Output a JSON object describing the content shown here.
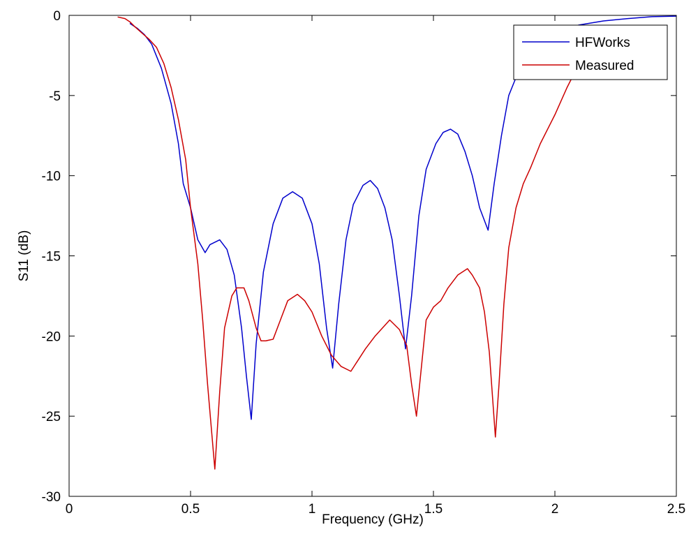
{
  "chart_data": {
    "type": "line",
    "title": "",
    "xlabel": "Frequency (GHz)",
    "ylabel": "S11 (dB)",
    "xlim": [
      0,
      2.5
    ],
    "ylim": [
      -30,
      0
    ],
    "xticks": [
      0,
      0.5,
      1,
      1.5,
      2,
      2.5
    ],
    "xtick_labels": [
      "0",
      "0.5",
      "1",
      "1.5",
      "2",
      "2.5"
    ],
    "yticks": [
      0,
      -5,
      -10,
      -15,
      -20,
      -25,
      -30
    ],
    "ytick_labels": [
      "0",
      "-5",
      "-10",
      "-15",
      "-20",
      "-25",
      "-30"
    ],
    "grid": false,
    "legend_position": "top-right",
    "series": [
      {
        "name": "HFWorks",
        "color": "#0000cc",
        "points": [
          [
            0.25,
            -0.5
          ],
          [
            0.28,
            -0.8
          ],
          [
            0.31,
            -1.2
          ],
          [
            0.34,
            -1.8
          ],
          [
            0.38,
            -3.3
          ],
          [
            0.42,
            -5.5
          ],
          [
            0.45,
            -8.0
          ],
          [
            0.47,
            -10.5
          ],
          [
            0.5,
            -12.0
          ],
          [
            0.53,
            -14.0
          ],
          [
            0.56,
            -14.8
          ],
          [
            0.58,
            -14.3
          ],
          [
            0.62,
            -14.0
          ],
          [
            0.65,
            -14.6
          ],
          [
            0.68,
            -16.2
          ],
          [
            0.71,
            -19.5
          ],
          [
            0.73,
            -22.5
          ],
          [
            0.75,
            -25.2
          ],
          [
            0.77,
            -20.5
          ],
          [
            0.8,
            -16.0
          ],
          [
            0.84,
            -13.0
          ],
          [
            0.88,
            -11.4
          ],
          [
            0.92,
            -11.0
          ],
          [
            0.96,
            -11.4
          ],
          [
            1.0,
            -13.0
          ],
          [
            1.03,
            -15.5
          ],
          [
            1.06,
            -19.5
          ],
          [
            1.085,
            -22.0
          ],
          [
            1.11,
            -18.0
          ],
          [
            1.14,
            -14.0
          ],
          [
            1.17,
            -11.8
          ],
          [
            1.21,
            -10.6
          ],
          [
            1.24,
            -10.3
          ],
          [
            1.27,
            -10.8
          ],
          [
            1.3,
            -12.0
          ],
          [
            1.33,
            -14.0
          ],
          [
            1.36,
            -17.5
          ],
          [
            1.385,
            -20.8
          ],
          [
            1.41,
            -17.5
          ],
          [
            1.44,
            -12.5
          ],
          [
            1.47,
            -9.6
          ],
          [
            1.51,
            -8.0
          ],
          [
            1.54,
            -7.3
          ],
          [
            1.57,
            -7.1
          ],
          [
            1.6,
            -7.4
          ],
          [
            1.63,
            -8.5
          ],
          [
            1.66,
            -10.0
          ],
          [
            1.69,
            -12.0
          ],
          [
            1.725,
            -13.4
          ],
          [
            1.75,
            -10.5
          ],
          [
            1.78,
            -7.5
          ],
          [
            1.81,
            -5.0
          ],
          [
            1.85,
            -3.5
          ],
          [
            1.9,
            -2.2
          ],
          [
            1.95,
            -1.4
          ],
          [
            2.0,
            -1.0
          ],
          [
            2.1,
            -0.6
          ],
          [
            2.2,
            -0.35
          ],
          [
            2.3,
            -0.2
          ],
          [
            2.4,
            -0.08
          ],
          [
            2.5,
            -0.05
          ]
        ]
      },
      {
        "name": "Measured",
        "color": "#cc0000",
        "points": [
          [
            0.2,
            -0.1
          ],
          [
            0.23,
            -0.2
          ],
          [
            0.25,
            -0.4
          ],
          [
            0.27,
            -0.7
          ],
          [
            0.3,
            -1.1
          ],
          [
            0.33,
            -1.5
          ],
          [
            0.36,
            -2.0
          ],
          [
            0.39,
            -3.0
          ],
          [
            0.42,
            -4.5
          ],
          [
            0.45,
            -6.5
          ],
          [
            0.48,
            -9.0
          ],
          [
            0.5,
            -12.0
          ],
          [
            0.53,
            -15.5
          ],
          [
            0.55,
            -19.0
          ],
          [
            0.57,
            -23.0
          ],
          [
            0.6,
            -28.3
          ],
          [
            0.62,
            -23.5
          ],
          [
            0.64,
            -19.5
          ],
          [
            0.67,
            -17.5
          ],
          [
            0.69,
            -17.0
          ],
          [
            0.72,
            -17.0
          ],
          [
            0.74,
            -17.8
          ],
          [
            0.77,
            -19.5
          ],
          [
            0.79,
            -20.3
          ],
          [
            0.81,
            -20.3
          ],
          [
            0.84,
            -20.2
          ],
          [
            0.87,
            -19.0
          ],
          [
            0.9,
            -17.8
          ],
          [
            0.94,
            -17.4
          ],
          [
            0.97,
            -17.8
          ],
          [
            1.0,
            -18.5
          ],
          [
            1.04,
            -20.0
          ],
          [
            1.08,
            -21.2
          ],
          [
            1.12,
            -21.9
          ],
          [
            1.16,
            -22.2
          ],
          [
            1.19,
            -21.5
          ],
          [
            1.22,
            -20.8
          ],
          [
            1.26,
            -20.0
          ],
          [
            1.32,
            -19.0
          ],
          [
            1.36,
            -19.6
          ],
          [
            1.39,
            -20.6
          ],
          [
            1.41,
            -23.0
          ],
          [
            1.43,
            -25.0
          ],
          [
            1.45,
            -22.0
          ],
          [
            1.47,
            -19.0
          ],
          [
            1.5,
            -18.2
          ],
          [
            1.53,
            -17.8
          ],
          [
            1.56,
            -17.0
          ],
          [
            1.6,
            -16.2
          ],
          [
            1.64,
            -15.8
          ],
          [
            1.66,
            -16.2
          ],
          [
            1.69,
            -17.0
          ],
          [
            1.71,
            -18.5
          ],
          [
            1.73,
            -21.0
          ],
          [
            1.755,
            -26.3
          ],
          [
            1.77,
            -23.0
          ],
          [
            1.79,
            -18.0
          ],
          [
            1.81,
            -14.5
          ],
          [
            1.84,
            -12.0
          ],
          [
            1.87,
            -10.5
          ],
          [
            1.9,
            -9.5
          ],
          [
            1.94,
            -8.0
          ],
          [
            1.98,
            -6.8
          ],
          [
            2.0,
            -6.2
          ],
          [
            2.05,
            -4.5
          ],
          [
            2.1,
            -3.0
          ],
          [
            2.15,
            -1.8
          ],
          [
            2.2,
            -1.0
          ]
        ]
      }
    ]
  }
}
